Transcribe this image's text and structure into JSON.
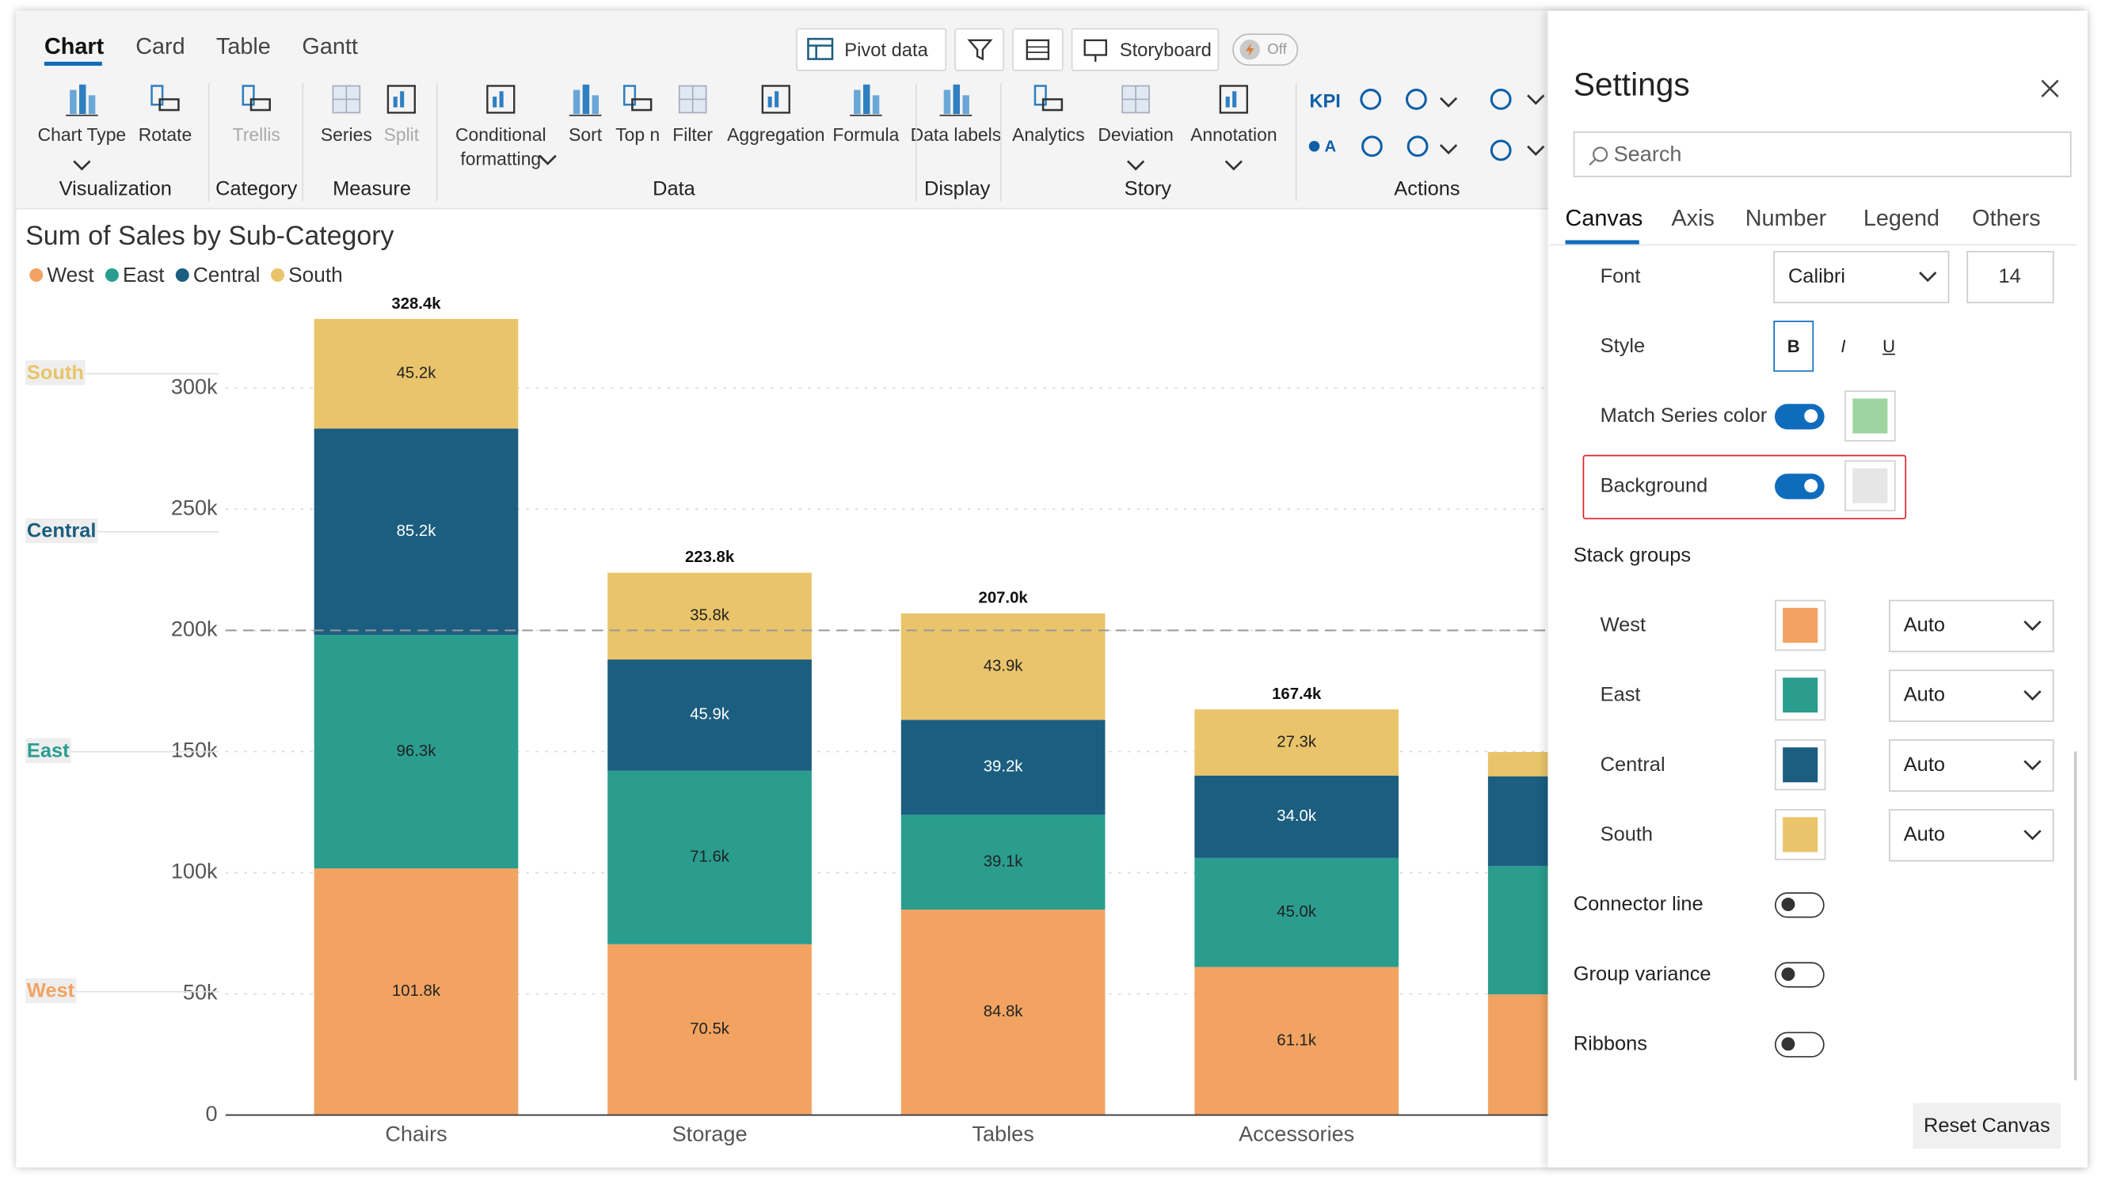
{
  "toolbar": {
    "tabs": [
      "Chart",
      "Card",
      "Table",
      "Gantt"
    ],
    "buttons": [
      "Pivot data",
      "Storyboard"
    ],
    "toggle": "Off",
    "groups": [
      {
        "name": "Visualization",
        "items": [
          "Chart Type",
          "Rotate"
        ]
      },
      {
        "name": "Category",
        "items": [
          "Trellis"
        ]
      },
      {
        "name": "Measure",
        "items": [
          "Series",
          "Split"
        ]
      },
      {
        "name": "Data",
        "items": [
          "Conditional formatting",
          "Sort",
          "Top n",
          "Filter",
          "Aggregation",
          "Formula"
        ]
      },
      {
        "name": "Display",
        "items": [
          "Data labels"
        ]
      },
      {
        "name": "Story",
        "items": [
          "Analytics",
          "Deviation",
          "Annotation"
        ]
      },
      {
        "name": "Actions",
        "items": [
          "KPI",
          "A"
        ]
      }
    ]
  },
  "chart_data": {
    "type": "stacked_bar",
    "title": "Sum of Sales by Sub-Category",
    "categories": [
      "Chairs",
      "Storage",
      "Tables",
      "Accessories",
      null
    ],
    "series": [
      {
        "name": "West",
        "color": "#f2a361",
        "values": [
          101800,
          70500,
          84800,
          61100,
          49800
        ],
        "value_labels": [
          "101.8k",
          "70.5k",
          "84.8k",
          "61.1k",
          null
        ]
      },
      {
        "name": "East",
        "color": "#2a9d8f",
        "values": [
          96300,
          71600,
          39100,
          45000,
          53000
        ],
        "value_labels": [
          "96.3k",
          "71.6k",
          "39.1k",
          "45.0k",
          null
        ]
      },
      {
        "name": "Central",
        "color": "#1b5e7f",
        "values": [
          85200,
          45900,
          39200,
          34000,
          37000
        ],
        "value_labels": [
          "85.2k",
          "45.9k",
          "39.2k",
          "34.0k",
          null
        ]
      },
      {
        "name": "South",
        "color": "#e9c46a",
        "values": [
          45200,
          35800,
          43900,
          27300,
          10000
        ],
        "value_labels": [
          "45.2k",
          "35.8k",
          "43.9k",
          "27.3k",
          null
        ]
      }
    ],
    "totals": [
      328400,
      223800,
      207000,
      167400,
      null
    ],
    "total_labels": [
      "328.4k",
      "223.8k",
      "207.0k",
      "167.4k",
      null
    ],
    "ylim": [
      0,
      330000
    ],
    "yticks": [
      0,
      {
        "value": 50000,
        "label": "50k"
      },
      {
        "value": 100000,
        "label": "100k"
      },
      {
        "value": 150000,
        "label": "150k"
      },
      {
        "value": 200000,
        "label": "200k"
      },
      {
        "value": 250000,
        "label": "250k"
      },
      {
        "value": 300000,
        "label": "300k"
      }
    ],
    "reference_line": 200000,
    "grid": true
  },
  "settings": {
    "title": "Settings",
    "search_placeholder": "Search",
    "tabs": [
      "Canvas",
      "Axis",
      "Number",
      "Legend",
      "Others"
    ],
    "font": {
      "label": "Font",
      "family": "Calibri",
      "size": 14
    },
    "style": {
      "label": "Style",
      "options": [
        "B",
        "I",
        "U"
      ]
    },
    "match_series_color": {
      "label": "Match Series color",
      "on": true,
      "color": "#9fd4a0"
    },
    "background": {
      "label": "Background",
      "on": true,
      "color": "#e6e6e6"
    },
    "stack_groups": {
      "title": "Stack groups",
      "rows": [
        {
          "name": "West",
          "color": "#f2a361",
          "mode": "Auto"
        },
        {
          "name": "East",
          "color": "#2a9d8f",
          "mode": "Auto"
        },
        {
          "name": "Central",
          "color": "#1b5e7f",
          "mode": "Auto"
        },
        {
          "name": "South",
          "color": "#e9c46a",
          "mode": "Auto"
        }
      ]
    },
    "toggles": [
      {
        "label": "Connector line",
        "on": false
      },
      {
        "label": "Group variance",
        "on": false
      },
      {
        "label": "Ribbons",
        "on": false
      }
    ],
    "reset_button": "Reset Canvas"
  }
}
